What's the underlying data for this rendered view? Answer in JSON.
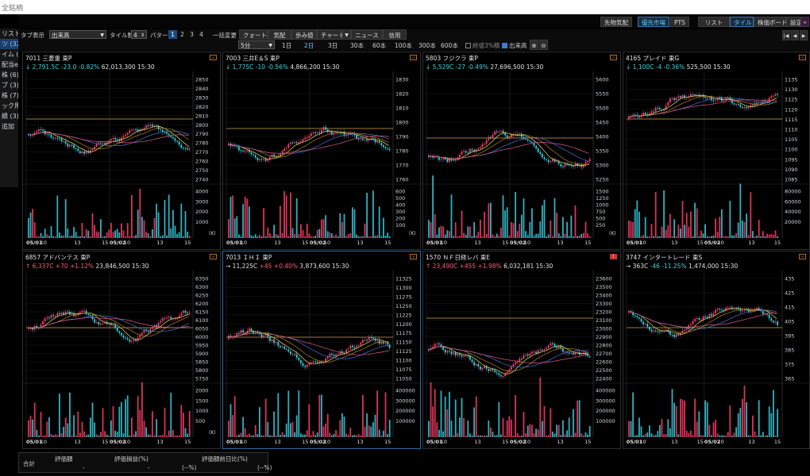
{
  "window": {
    "title": "全銘柄"
  },
  "topbar": {
    "buttons": [
      "先物気配",
      "優先市場",
      "PTS",
      "リスト",
      "タイル",
      "株価ボード",
      "設定"
    ]
  },
  "sidebar": {
    "items": [
      "リスト",
      "ツ (32)",
      "イム (6)",
      "配当etf",
      "株 (6)",
      "ブ (3)",
      "株 (7)",
      "ック用 (",
      "績 (3)",
      "追加"
    ]
  },
  "toolbar": {
    "tab_display_label": "タブ表示",
    "tab_display_value": "出来高",
    "tile_count_label": "タイル数",
    "tile_count_value": "4",
    "pattern_label": "パターン",
    "patterns": [
      "1",
      "2",
      "3",
      "4"
    ],
    "bulk_change_label": "一括変更",
    "bulk_buttons": [
      "クォート",
      "気配",
      "歩み値",
      "チャート",
      "ニュース",
      "信用"
    ],
    "interval_value": "5分",
    "periods": [
      "1日",
      "2日",
      "3日",
      "30本",
      "60本",
      "100本",
      "300本",
      "600本"
    ],
    "active_period": "2日",
    "closing_label": "終値3%積",
    "volume_label": "出来高"
  },
  "panels": [
    {
      "code": "7011",
      "name": "三菱重",
      "market": "東P",
      "dir": "down",
      "price": "2,791.5",
      "price_suffix": "C",
      "change": "-23.0",
      "change_pct": "-0.82%",
      "volume": "62,013,300",
      "time": "15:30",
      "price_ticks": [
        "2850",
        "2840",
        "2830",
        "2820",
        "2810",
        "2800",
        "2790",
        "2780",
        "2770",
        "2760",
        "2750",
        "2740"
      ],
      "vol_ticks": [
        "4000",
        "3000",
        "2000",
        "1000"
      ],
      "vol_unit": "(K)",
      "x_labels": [
        "05/01",
        "10",
        "13",
        "15",
        "05/02",
        "10",
        "13",
        "15"
      ]
    },
    {
      "code": "7003",
      "name": "三井E＆S",
      "market": "東P",
      "dir": "down",
      "price": "1,775",
      "price_suffix": "C",
      "change": "-10",
      "change_pct": "-0.56%",
      "volume": "4,866,200",
      "time": "15:30",
      "price_ticks": [
        "1830",
        "1820",
        "1810",
        "1800",
        "1790",
        "1780",
        "1770",
        "1760"
      ],
      "vol_ticks": [
        "600",
        "500",
        "400",
        "300",
        "200",
        "100"
      ],
      "vol_unit": "(K)",
      "x_labels": [
        "05/01",
        "10",
        "13",
        "15",
        "05/02",
        "10",
        "13",
        "15"
      ]
    },
    {
      "code": "5803",
      "name": "フジクラ",
      "market": "東P",
      "dir": "down",
      "price": "5,529",
      "price_suffix": "C",
      "change": "-27",
      "change_pct": "-0.49%",
      "volume": "27,696,500",
      "time": "15:30",
      "price_ticks": [
        "5600",
        "5550",
        "5500",
        "5450",
        "5400",
        "5350",
        "5300",
        "5250"
      ],
      "vol_ticks": [
        "1500",
        "1250",
        "1000",
        "750",
        "500",
        "250"
      ],
      "vol_unit": "(K)",
      "x_labels": [
        "05/01",
        "10",
        "13",
        "15",
        "05/02",
        "10",
        "13",
        "15"
      ]
    },
    {
      "code": "4165",
      "name": "プレイド",
      "market": "東G",
      "dir": "down",
      "price": "1,100",
      "price_suffix": "C",
      "change": "-4",
      "change_pct": "-0.36%",
      "volume": "525,500",
      "time": "15:30",
      "price_ticks": [
        "1135",
        "1130",
        "1125",
        "1120",
        "1115",
        "1110",
        "1105",
        "1100",
        "1095",
        "1090",
        "1085"
      ],
      "vol_ticks": [
        "80000",
        "60000",
        "40000",
        "20000"
      ],
      "vol_unit": "",
      "x_labels": [
        "05/01",
        "10",
        "13",
        "15",
        "05/02",
        "10",
        "13",
        "15"
      ]
    },
    {
      "code": "6857",
      "name": "アドバンテス",
      "market": "東P",
      "dir": "up",
      "price": "6,337",
      "price_suffix": "C",
      "change": "+70",
      "change_pct": "+1.12%",
      "volume": "23,846,500",
      "time": "15:30",
      "price_ticks": [
        "6350",
        "6300",
        "6250",
        "6200",
        "6150",
        "6100",
        "6050",
        "6000",
        "5950",
        "5900",
        "5850",
        "5800",
        "5750"
      ],
      "vol_ticks": [
        "2000",
        "1500",
        "1000",
        "500"
      ],
      "vol_unit": "(K)",
      "x_labels": [
        "05/01",
        "10",
        "13",
        "15",
        "05/02",
        "10",
        "13",
        "15"
      ]
    },
    {
      "code": "7013",
      "name": "ＩＨＩ",
      "market": "東P",
      "dir": "flat",
      "price": "11,225",
      "price_suffix": "C",
      "change": "+45",
      "change_pct": "+0.40%",
      "volume": "3,873,600",
      "time": "15:30",
      "price_ticks": [
        "11325",
        "11300",
        "11275",
        "11250",
        "11225",
        "11200",
        "11175",
        "11150",
        "11125",
        "11100",
        "11075",
        "11050"
      ],
      "vol_ticks": [
        "400000",
        "300000",
        "200000",
        "100000"
      ],
      "vol_unit": "",
      "x_labels": [
        "05/01",
        "10",
        "13",
        "15",
        "05/02",
        "10",
        "13",
        "15"
      ]
    },
    {
      "code": "1570",
      "name": "ＮＦ日経レバ",
      "market": "東E",
      "dir": "up",
      "price": "23,490",
      "price_suffix": "C",
      "change": "+455",
      "change_pct": "+1.98%",
      "volume": "6,032,181",
      "time": "15:30",
      "price_ticks": [
        "23600",
        "23500",
        "23400",
        "23300",
        "23200",
        "23100",
        "23000",
        "22900",
        "22800",
        "22700",
        "22600",
        "22500",
        "22400"
      ],
      "vol_ticks": [
        "400000",
        "300000",
        "200000",
        "100000"
      ],
      "vol_unit": "",
      "x_labels": [
        "05/01",
        "10",
        "13",
        "15",
        "05/02",
        "10",
        "13",
        "15"
      ]
    },
    {
      "code": "3747",
      "name": "インタートレード",
      "market": "東S",
      "dir": "flat",
      "price": "363",
      "price_suffix": "C",
      "change": "-46",
      "change_pct": "-11.25%",
      "volume": "1,474,000",
      "time": "15:30",
      "price_ticks": [
        "435",
        "425",
        "415",
        "405",
        "395",
        "385",
        "375",
        "365"
      ],
      "vol_ticks": [],
      "vol_unit": "",
      "x_labels": [
        "05/01",
        "10",
        "13",
        "15",
        "05/02",
        "10",
        "13",
        "15"
      ]
    }
  ],
  "footer": {
    "total_label": "合計",
    "col1": "評価額",
    "col2": "評価損益(%)",
    "col3": "評価額前日比(%)",
    "v2": "(--%)",
    "v3": "(--%)",
    "v1": "-",
    "v2a": "-",
    "v3a": "-"
  },
  "colors": {
    "up": "#ff3d69",
    "down": "#38cfe0",
    "ma1": "#e0e060",
    "ma2": "#b2802b",
    "ma3": "#4b6fd0",
    "ma4": "#d85a8a",
    "ref": "#d1a648"
  }
}
